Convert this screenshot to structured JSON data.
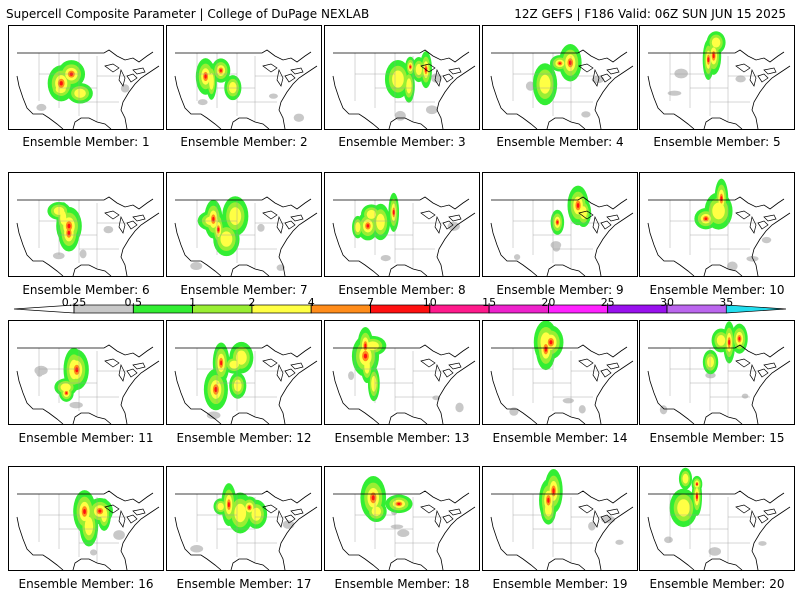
{
  "header": {
    "title": "Supercell Composite Parameter | College of DuPage NEXLAB",
    "run_info": "12Z GEFS | F186 Valid: 06Z SUN JUN 15 2025"
  },
  "members": [
    "Ensemble Member: 1",
    "Ensemble Member: 2",
    "Ensemble Member: 3",
    "Ensemble Member: 4",
    "Ensemble Member: 5",
    "Ensemble Member: 6",
    "Ensemble Member: 7",
    "Ensemble Member: 8",
    "Ensemble Member: 9",
    "Ensemble Member: 10",
    "Ensemble Member: 11",
    "Ensemble Member: 12",
    "Ensemble Member: 13",
    "Ensemble Member: 14",
    "Ensemble Member: 15",
    "Ensemble Member: 16",
    "Ensemble Member: 17",
    "Ensemble Member: 18",
    "Ensemble Member: 19",
    "Ensemble Member: 20"
  ],
  "legend": {
    "ticks": [
      "0.25",
      "0.5",
      "1",
      "2",
      "4",
      "7",
      "10",
      "15",
      "20",
      "25",
      "30",
      "35"
    ],
    "colors": [
      "#c8c8c8",
      "#33ee33",
      "#99ee33",
      "#ffff44",
      "#ff8c1a",
      "#ff1010",
      "#ff1a8c",
      "#ee22cc",
      "#ff22ff",
      "#9911ee",
      "#bb66ee",
      "#22ddee"
    ]
  },
  "map_colors": {
    "land_outline": "#000000",
    "ocean": "#ffffff"
  }
}
